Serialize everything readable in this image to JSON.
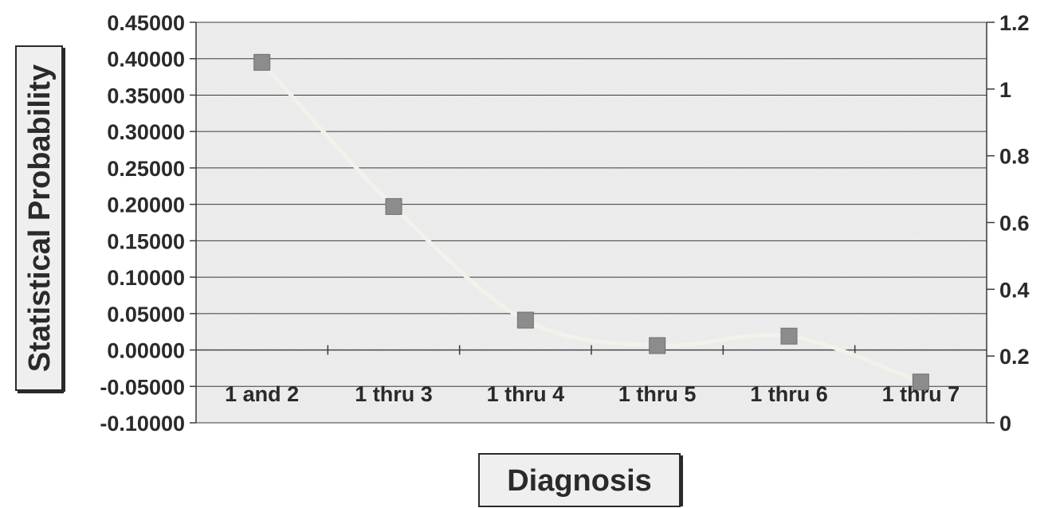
{
  "chart_data": {
    "type": "line",
    "xlabel": "Diagnosis",
    "ylabel": "Statistical Probability",
    "categories": [
      "1 and 2",
      "1 thru 3",
      "1 thru 4",
      "1 thru 5",
      "1 thru 6",
      "1 thru 7"
    ],
    "series": [
      {
        "values": [
          0.395,
          0.197,
          0.041,
          0.006,
          0.019,
          -0.044
        ]
      }
    ],
    "ylim": [
      -0.1,
      0.45
    ],
    "y_ticks": [
      "0.45000",
      "0.40000",
      "0.35000",
      "0.30000",
      "0.25000",
      "0.20000",
      "0.15000",
      "0.10000",
      "0.05000",
      "0.00000",
      "-0.05000",
      "-0.10000"
    ],
    "y2lim": [
      0,
      1.2
    ],
    "y2_ticks": [
      "1.2",
      "1",
      "0.8",
      "0.6",
      "0.4",
      "0.2",
      "0"
    ],
    "grid": true,
    "colors": {
      "marker": "#8c8c8c",
      "line": "#f2f2ea",
      "plot_bg": "#f1f1f1",
      "grid": "#3a3a3a"
    }
  }
}
